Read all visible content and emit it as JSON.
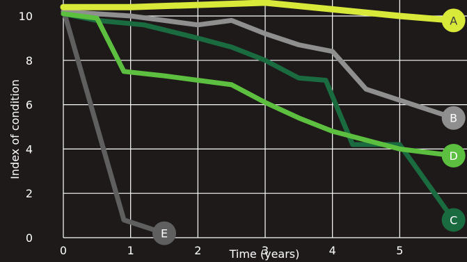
{
  "chart_data": {
    "type": "line",
    "title": "",
    "xlabel": "Time (years)",
    "ylabel": "Index of condition",
    "xlim": [
      0,
      6
    ],
    "ylim": [
      0,
      11
    ],
    "xticks": [
      "0",
      "1",
      "2",
      "3",
      "4",
      "5"
    ],
    "yticks": [
      "0",
      "2",
      "4",
      "6",
      "8",
      "10"
    ],
    "grid": true,
    "series": [
      {
        "name": "E",
        "color": "#5f5f5f",
        "x": [
          0,
          0.9,
          1.5
        ],
        "y": [
          10.3,
          0.8,
          0.2
        ]
      },
      {
        "name": "C",
        "color": "#1a6b3f",
        "x": [
          0,
          0.5,
          1.2,
          2,
          2.5,
          3,
          3.5,
          3.9,
          4.3,
          5,
          5.8
        ],
        "y": [
          10.1,
          9.8,
          9.6,
          9.0,
          8.6,
          8.0,
          7.2,
          7.1,
          4.2,
          4.2,
          0.8
        ]
      },
      {
        "name": "B",
        "color": "#8f8f8f",
        "x": [
          0,
          1,
          2,
          2.5,
          3,
          3.5,
          4,
          4.5,
          5.8
        ],
        "y": [
          10.2,
          10.0,
          9.6,
          9.8,
          9.2,
          8.7,
          8.4,
          6.7,
          5.4
        ]
      },
      {
        "name": "D",
        "color": "#5cbf3f",
        "x": [
          0,
          0.5,
          0.9,
          1.5,
          2,
          2.5,
          3,
          3.5,
          4,
          4.5,
          5,
          5.8
        ],
        "y": [
          10.1,
          9.9,
          7.5,
          7.3,
          7.1,
          6.9,
          6.1,
          5.4,
          4.8,
          4.4,
          4.0,
          3.7
        ]
      },
      {
        "name": "A",
        "color": "#d8e93a",
        "x": [
          0,
          1,
          2,
          3,
          4,
          5,
          5.8
        ],
        "y": [
          10.4,
          10.4,
          10.5,
          10.6,
          10.3,
          10.0,
          9.8
        ]
      }
    ],
    "labels": [
      {
        "text": "A",
        "series": "A",
        "x": 5.8,
        "y": 9.8,
        "bg": "#d8e93a",
        "fg": "#3a3a3a"
      },
      {
        "text": "B",
        "series": "B",
        "x": 5.8,
        "y": 5.4,
        "bg": "#8f8f8f",
        "fg": "#ffffff"
      },
      {
        "text": "D",
        "series": "D",
        "x": 5.8,
        "y": 3.7,
        "bg": "#5cbf3f",
        "fg": "#ffffff"
      },
      {
        "text": "C",
        "series": "C",
        "x": 5.8,
        "y": 0.8,
        "bg": "#1a6b3f",
        "fg": "#ffffff"
      },
      {
        "text": "E",
        "series": "E",
        "x": 1.5,
        "y": 0.2,
        "bg": "#5f5f5f",
        "fg": "#ffffff"
      }
    ],
    "background": "#1e1a1a",
    "grid_color": "#ffffff"
  }
}
